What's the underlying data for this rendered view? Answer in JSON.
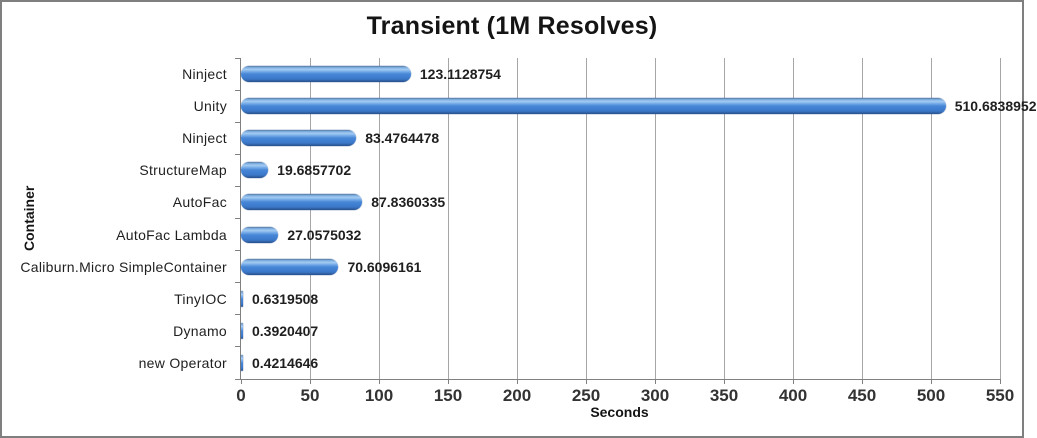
{
  "window": {
    "background_color": "#ffffff",
    "border_color": "#7f7f7f"
  },
  "chart_data": {
    "type": "bar",
    "orientation": "horizontal",
    "title": "Transient (1M Resolves)",
    "xlabel": "Seconds",
    "ylabel": "Container",
    "categories": [
      "Ninject",
      "Unity",
      "Ninject",
      "StructureMap",
      "AutoFac",
      "AutoFac Lambda",
      "Caliburn.Micro SimpleContainer",
      "TinyIOC",
      "Dynamo",
      "new Operator"
    ],
    "values": [
      123.1128754,
      510.6838952,
      83.4764478,
      19.6857702,
      87.8360335,
      27.0575032,
      70.6096161,
      0.6319508,
      0.3920407,
      0.4214646
    ],
    "value_labels": [
      "123.1128754",
      "510.6838952",
      "83.4764478",
      "19.6857702",
      "87.8360335",
      "27.0575032",
      "70.6096161",
      "0.6319508",
      "0.3920407",
      "0.4214646"
    ],
    "xlim": [
      0,
      550
    ],
    "xticks": [
      0,
      50,
      100,
      150,
      200,
      250,
      300,
      350,
      400,
      450,
      500,
      550
    ],
    "grid": "vertical gridlines on",
    "legend": "none",
    "colors": {
      "bar_main": "#3f7ed2",
      "bar_highlight": "#a3cbf2",
      "bar_dark": "#27508b",
      "gridline": "#a6a6a6",
      "axis_line": "#808080",
      "text": "#1f1f1f"
    }
  }
}
